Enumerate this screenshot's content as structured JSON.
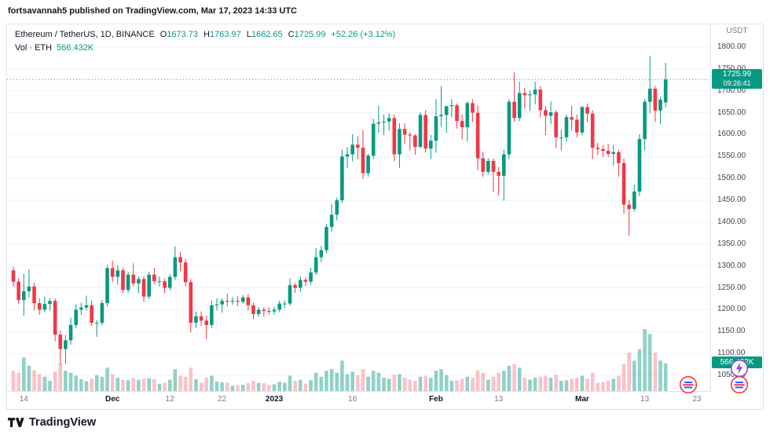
{
  "publish_bar": {
    "text": "fortsavannah5 published on TradingView.com, Mar 17, 2023 14:33 UTC"
  },
  "legend": {
    "symbol": "Ethereum / TetherUS, 1D, BINANCE",
    "o_label": "O",
    "o_value": "1673.73",
    "h_label": "H",
    "h_value": "1763.97",
    "l_label": "L",
    "l_value": "1662.65",
    "c_label": "C",
    "c_value": "1725.99",
    "change": "+52.26 (+3.12%)",
    "volume_label": "Vol · ETH",
    "volume_value": "566.432K"
  },
  "price_axis": {
    "currency": "USDT",
    "badge_price": "1725.99",
    "badge_countdown": "09:26:41",
    "volume_badge": "566.432K"
  },
  "footer": {
    "brand": "TradingView"
  },
  "colors": {
    "up": "#089981",
    "down": "#f23645",
    "volume_up": "rgba(8,153,129,0.45)",
    "volume_down": "rgba(242,54,69,0.30)",
    "badge": "#089981",
    "grid": "#f0f3fa"
  },
  "chart_data": {
    "type": "candlestick",
    "title": "Ethereum / TetherUS, 1D, BINANCE",
    "ylabel": "USDT",
    "interval": "1D",
    "start_date": "2022-11-12",
    "slots": 132,
    "price_range": [
      1050,
      1800
    ],
    "price_tick_step": 50,
    "volume_scale_max": 1250,
    "price_ticks": [
      "1800.00",
      "1750.00",
      "1700.00",
      "1650.00",
      "1600.00",
      "1550.00",
      "1500.00",
      "1450.00",
      "1400.00",
      "1350.00",
      "1300.00",
      "1250.00",
      "1200.00",
      "1150.00",
      "1100.00",
      "1050.00"
    ],
    "time_ticks": [
      {
        "i": 2,
        "label": "14",
        "major": false
      },
      {
        "i": 19,
        "label": "Dec",
        "major": true
      },
      {
        "i": 30,
        "label": "12",
        "major": false
      },
      {
        "i": 40,
        "label": "22",
        "major": false
      },
      {
        "i": 50,
        "label": "2023",
        "major": true
      },
      {
        "i": 65,
        "label": "16",
        "major": false
      },
      {
        "i": 81,
        "label": "Feb",
        "major": true
      },
      {
        "i": 93,
        "label": "13",
        "major": false
      },
      {
        "i": 109,
        "label": "Mar",
        "major": true
      },
      {
        "i": 121,
        "label": "13",
        "major": false
      },
      {
        "i": 131,
        "label": "23",
        "major": false
      }
    ],
    "last": {
      "o": 1673.73,
      "h": 1763.97,
      "l": 1662.65,
      "c": 1725.99,
      "change": 52.26,
      "change_pct": 3.12,
      "volume_display": "566.432K"
    },
    "candles": [
      [
        1290,
        1298,
        1252,
        1264,
        420
      ],
      [
        1264,
        1272,
        1214,
        1222,
        380
      ],
      [
        1222,
        1282,
        1186,
        1242,
        680
      ],
      [
        1242,
        1292,
        1228,
        1253,
        520
      ],
      [
        1253,
        1262,
        1198,
        1215,
        430
      ],
      [
        1215,
        1226,
        1188,
        1200,
        350
      ],
      [
        1200,
        1230,
        1194,
        1213,
        300
      ],
      [
        1213,
        1226,
        1198,
        1220,
        220
      ],
      [
        1220,
        1226,
        1128,
        1143,
        400
      ],
      [
        1143,
        1152,
        1074,
        1110,
        560
      ],
      [
        1110,
        1142,
        1076,
        1130,
        420
      ],
      [
        1130,
        1182,
        1120,
        1165,
        380
      ],
      [
        1165,
        1212,
        1158,
        1200,
        320
      ],
      [
        1200,
        1216,
        1188,
        1205,
        250
      ],
      [
        1205,
        1232,
        1198,
        1210,
        210
      ],
      [
        1210,
        1221,
        1163,
        1170,
        260
      ],
      [
        1170,
        1176,
        1138,
        1170,
        330
      ],
      [
        1170,
        1222,
        1164,
        1215,
        300
      ],
      [
        1215,
        1302,
        1208,
        1295,
        480
      ],
      [
        1295,
        1312,
        1263,
        1275,
        350
      ],
      [
        1275,
        1302,
        1258,
        1290,
        280
      ],
      [
        1290,
        1296,
        1238,
        1245,
        240
      ],
      [
        1245,
        1287,
        1238,
        1280,
        230
      ],
      [
        1280,
        1306,
        1253,
        1260,
        270
      ],
      [
        1260,
        1276,
        1238,
        1270,
        240
      ],
      [
        1270,
        1276,
        1218,
        1230,
        260
      ],
      [
        1230,
        1287,
        1224,
        1280,
        270
      ],
      [
        1280,
        1296,
        1258,
        1265,
        250
      ],
      [
        1265,
        1276,
        1253,
        1265,
        160
      ],
      [
        1265,
        1271,
        1238,
        1250,
        180
      ],
      [
        1250,
        1281,
        1244,
        1275,
        240
      ],
      [
        1275,
        1345,
        1268,
        1320,
        450
      ],
      [
        1320,
        1332,
        1288,
        1308,
        320
      ],
      [
        1308,
        1316,
        1253,
        1263,
        300
      ],
      [
        1263,
        1270,
        1148,
        1170,
        480
      ],
      [
        1170,
        1196,
        1158,
        1185,
        250
      ],
      [
        1185,
        1196,
        1163,
        1175,
        180
      ],
      [
        1175,
        1186,
        1133,
        1165,
        280
      ],
      [
        1165,
        1221,
        1158,
        1210,
        320
      ],
      [
        1210,
        1226,
        1198,
        1212,
        200
      ],
      [
        1212,
        1226,
        1193,
        1220,
        190
      ],
      [
        1220,
        1236,
        1208,
        1218,
        180
      ],
      [
        1218,
        1229,
        1211,
        1220,
        120
      ],
      [
        1220,
        1231,
        1208,
        1218,
        130
      ],
      [
        1218,
        1233,
        1214,
        1228,
        140
      ],
      [
        1228,
        1236,
        1198,
        1210,
        170
      ],
      [
        1210,
        1216,
        1178,
        1190,
        220
      ],
      [
        1190,
        1206,
        1184,
        1200,
        180
      ],
      [
        1200,
        1206,
        1184,
        1197,
        170
      ],
      [
        1197,
        1206,
        1189,
        1196,
        140
      ],
      [
        1196,
        1206,
        1189,
        1200,
        150
      ],
      [
        1200,
        1221,
        1194,
        1214,
        200
      ],
      [
        1214,
        1221,
        1204,
        1214,
        180
      ],
      [
        1214,
        1271,
        1209,
        1256,
        320
      ],
      [
        1256,
        1261,
        1239,
        1250,
        220
      ],
      [
        1250,
        1276,
        1241,
        1268,
        240
      ],
      [
        1268,
        1273,
        1254,
        1264,
        160
      ],
      [
        1264,
        1296,
        1257,
        1285,
        230
      ],
      [
        1285,
        1341,
        1279,
        1320,
        380
      ],
      [
        1320,
        1346,
        1309,
        1336,
        300
      ],
      [
        1336,
        1396,
        1329,
        1389,
        420
      ],
      [
        1389,
        1441,
        1379,
        1417,
        450
      ],
      [
        1417,
        1456,
        1404,
        1450,
        380
      ],
      [
        1450,
        1566,
        1444,
        1550,
        620
      ],
      [
        1550,
        1571,
        1524,
        1555,
        350
      ],
      [
        1555,
        1601,
        1539,
        1577,
        400
      ],
      [
        1577,
        1596,
        1544,
        1570,
        330
      ],
      [
        1570,
        1611,
        1499,
        1512,
        450
      ],
      [
        1512,
        1556,
        1504,
        1552,
        300
      ],
      [
        1552,
        1636,
        1544,
        1625,
        420
      ],
      [
        1625,
        1666,
        1604,
        1628,
        380
      ],
      [
        1628,
        1646,
        1599,
        1630,
        280
      ],
      [
        1630,
        1649,
        1609,
        1638,
        260
      ],
      [
        1638,
        1646,
        1539,
        1555,
        340
      ],
      [
        1555,
        1626,
        1524,
        1613,
        350
      ],
      [
        1613,
        1626,
        1579,
        1600,
        280
      ],
      [
        1600,
        1606,
        1564,
        1598,
        240
      ],
      [
        1598,
        1601,
        1554,
        1572,
        220
      ],
      [
        1572,
        1651,
        1569,
        1645,
        300
      ],
      [
        1645,
        1656,
        1559,
        1568,
        320
      ],
      [
        1568,
        1599,
        1544,
        1586,
        280
      ],
      [
        1586,
        1681,
        1559,
        1642,
        420
      ],
      [
        1642,
        1711,
        1619,
        1645,
        450
      ],
      [
        1645,
        1666,
        1604,
        1665,
        330
      ],
      [
        1665,
        1681,
        1639,
        1667,
        220
      ],
      [
        1667,
        1671,
        1614,
        1631,
        230
      ],
      [
        1631,
        1646,
        1589,
        1617,
        260
      ],
      [
        1617,
        1676,
        1584,
        1672,
        300
      ],
      [
        1672,
        1681,
        1629,
        1650,
        280
      ],
      [
        1650,
        1666,
        1519,
        1546,
        430
      ],
      [
        1546,
        1561,
        1504,
        1515,
        380
      ],
      [
        1515,
        1546,
        1509,
        1540,
        240
      ],
      [
        1540,
        1546,
        1469,
        1515,
        300
      ],
      [
        1515,
        1526,
        1461,
        1506,
        380
      ],
      [
        1506,
        1566,
        1449,
        1555,
        420
      ],
      [
        1555,
        1681,
        1544,
        1675,
        520
      ],
      [
        1675,
        1742,
        1629,
        1638,
        550
      ],
      [
        1638,
        1721,
        1631,
        1695,
        480
      ],
      [
        1695,
        1706,
        1659,
        1690,
        280
      ],
      [
        1690,
        1701,
        1654,
        1692,
        240
      ],
      [
        1692,
        1721,
        1669,
        1703,
        280
      ],
      [
        1703,
        1711,
        1639,
        1656,
        300
      ],
      [
        1656,
        1666,
        1599,
        1643,
        320
      ],
      [
        1643,
        1676,
        1624,
        1651,
        280
      ],
      [
        1651,
        1656,
        1569,
        1594,
        340
      ],
      [
        1594,
        1611,
        1564,
        1594,
        220
      ],
      [
        1594,
        1646,
        1584,
        1640,
        230
      ],
      [
        1640,
        1666,
        1609,
        1634,
        260
      ],
      [
        1634,
        1646,
        1594,
        1605,
        280
      ],
      [
        1605,
        1666,
        1599,
        1663,
        320
      ],
      [
        1663,
        1671,
        1629,
        1648,
        260
      ],
      [
        1648,
        1656,
        1544,
        1570,
        380
      ],
      [
        1570,
        1581,
        1554,
        1567,
        180
      ],
      [
        1567,
        1576,
        1549,
        1563,
        190
      ],
      [
        1563,
        1579,
        1549,
        1556,
        220
      ],
      [
        1556,
        1576,
        1529,
        1560,
        260
      ],
      [
        1560,
        1566,
        1504,
        1535,
        320
      ],
      [
        1535,
        1546,
        1419,
        1440,
        550
      ],
      [
        1440,
        1451,
        1369,
        1430,
        780
      ],
      [
        1430,
        1486,
        1424,
        1470,
        620
      ],
      [
        1470,
        1601,
        1459,
        1590,
        850
      ],
      [
        1590,
        1681,
        1564,
        1675,
        1250
      ],
      [
        1675,
        1780,
        1649,
        1705,
        1150
      ],
      [
        1705,
        1711,
        1629,
        1655,
        780
      ],
      [
        1655,
        1686,
        1624,
        1680,
        620
      ],
      [
        1673.73,
        1763.97,
        1662.65,
        1725.99,
        566.432
      ]
    ]
  }
}
